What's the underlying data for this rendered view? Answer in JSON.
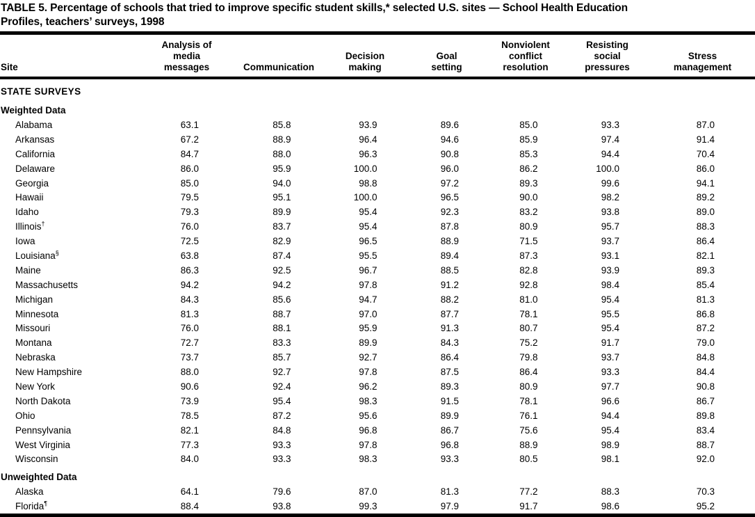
{
  "title": {
    "line1": "TABLE 5. Percentage of schools that tried to improve specific student skills,* selected U.S. sites — School Health Education",
    "line2": "Profiles, teachers’ surveys, 1998"
  },
  "table": {
    "header": {
      "site": "Site",
      "cols": [
        "Analysis of media messages",
        "Communication",
        "Decision making",
        "Goal setting",
        "Nonviolent conflict resolution",
        "Resisting social pressures",
        "Stress management"
      ]
    },
    "rows": [
      {
        "type": "section",
        "label": "STATE SURVEYS"
      },
      {
        "type": "subsection",
        "label": "Weighted Data"
      },
      {
        "type": "data",
        "site": "Alabama",
        "sup": "",
        "values": [
          "63.1",
          "85.8",
          "93.9",
          "89.6",
          "85.0",
          "93.3",
          "87.0"
        ]
      },
      {
        "type": "data",
        "site": "Arkansas",
        "sup": "",
        "values": [
          "67.2",
          "88.9",
          "96.4",
          "94.6",
          "85.9",
          "97.4",
          "91.4"
        ]
      },
      {
        "type": "data",
        "site": "California",
        "sup": "",
        "values": [
          "84.7",
          "88.0",
          "96.3",
          "90.8",
          "85.3",
          "94.4",
          "70.4"
        ]
      },
      {
        "type": "data",
        "site": "Delaware",
        "sup": "",
        "values": [
          "86.0",
          "95.9",
          "100.0",
          "96.0",
          "86.2",
          "100.0",
          "86.0"
        ]
      },
      {
        "type": "data",
        "site": "Georgia",
        "sup": "",
        "values": [
          "85.0",
          "94.0",
          "98.8",
          "97.2",
          "89.3",
          "99.6",
          "94.1"
        ]
      },
      {
        "type": "data",
        "site": "Hawaii",
        "sup": "",
        "values": [
          "79.5",
          "95.1",
          "100.0",
          "96.5",
          "90.0",
          "98.2",
          "89.2"
        ]
      },
      {
        "type": "data",
        "site": "Idaho",
        "sup": "",
        "values": [
          "79.3",
          "89.9",
          "95.4",
          "92.3",
          "83.2",
          "93.8",
          "89.0"
        ]
      },
      {
        "type": "data",
        "site": "Illinois",
        "sup": "†",
        "values": [
          "76.0",
          "83.7",
          "95.4",
          "87.8",
          "80.9",
          "95.7",
          "88.3"
        ]
      },
      {
        "type": "data",
        "site": "Iowa",
        "sup": "",
        "values": [
          "72.5",
          "82.9",
          "96.5",
          "88.9",
          "71.5",
          "93.7",
          "86.4"
        ]
      },
      {
        "type": "data",
        "site": "Louisiana",
        "sup": "§",
        "values": [
          "63.8",
          "87.4",
          "95.5",
          "89.4",
          "87.3",
          "93.1",
          "82.1"
        ]
      },
      {
        "type": "data",
        "site": "Maine",
        "sup": "",
        "values": [
          "86.3",
          "92.5",
          "96.7",
          "88.5",
          "82.8",
          "93.9",
          "89.3"
        ]
      },
      {
        "type": "data",
        "site": "Massachusetts",
        "sup": "",
        "values": [
          "94.2",
          "94.2",
          "97.8",
          "91.2",
          "92.8",
          "98.4",
          "85.4"
        ]
      },
      {
        "type": "data",
        "site": "Michigan",
        "sup": "",
        "values": [
          "84.3",
          "85.6",
          "94.7",
          "88.2",
          "81.0",
          "95.4",
          "81.3"
        ]
      },
      {
        "type": "data",
        "site": "Minnesota",
        "sup": "",
        "values": [
          "81.3",
          "88.7",
          "97.0",
          "87.7",
          "78.1",
          "95.5",
          "86.8"
        ]
      },
      {
        "type": "data",
        "site": "Missouri",
        "sup": "",
        "values": [
          "76.0",
          "88.1",
          "95.9",
          "91.3",
          "80.7",
          "95.4",
          "87.2"
        ]
      },
      {
        "type": "data",
        "site": "Montana",
        "sup": "",
        "values": [
          "72.7",
          "83.3",
          "89.9",
          "84.3",
          "75.2",
          "91.7",
          "79.0"
        ]
      },
      {
        "type": "data",
        "site": "Nebraska",
        "sup": "",
        "values": [
          "73.7",
          "85.7",
          "92.7",
          "86.4",
          "79.8",
          "93.7",
          "84.8"
        ]
      },
      {
        "type": "data",
        "site": "New Hampshire",
        "sup": "",
        "values": [
          "88.0",
          "92.7",
          "97.8",
          "87.5",
          "86.4",
          "93.3",
          "84.4"
        ]
      },
      {
        "type": "data",
        "site": "New York",
        "sup": "",
        "values": [
          "90.6",
          "92.4",
          "96.2",
          "89.3",
          "80.9",
          "97.7",
          "90.8"
        ]
      },
      {
        "type": "data",
        "site": "North Dakota",
        "sup": "",
        "values": [
          "73.9",
          "95.4",
          "98.3",
          "91.5",
          "78.1",
          "96.6",
          "86.7"
        ]
      },
      {
        "type": "data",
        "site": "Ohio",
        "sup": "",
        "values": [
          "78.5",
          "87.2",
          "95.6",
          "89.9",
          "76.1",
          "94.4",
          "89.8"
        ]
      },
      {
        "type": "data",
        "site": "Pennsylvania",
        "sup": "",
        "values": [
          "82.1",
          "84.8",
          "96.8",
          "86.7",
          "75.6",
          "95.4",
          "83.4"
        ]
      },
      {
        "type": "data",
        "site": "West Virginia",
        "sup": "",
        "values": [
          "77.3",
          "93.3",
          "97.8",
          "96.8",
          "88.9",
          "98.9",
          "88.7"
        ]
      },
      {
        "type": "data",
        "site": "Wisconsin",
        "sup": "",
        "values": [
          "84.0",
          "93.3",
          "98.3",
          "93.3",
          "80.5",
          "98.1",
          "92.0"
        ]
      },
      {
        "type": "subsection",
        "label": "Unweighted Data"
      },
      {
        "type": "data",
        "site": "Alaska",
        "sup": "",
        "values": [
          "64.1",
          "79.6",
          "87.0",
          "81.3",
          "77.2",
          "88.3",
          "70.3"
        ]
      },
      {
        "type": "data",
        "site": "Florida",
        "sup": "¶",
        "values": [
          "88.4",
          "93.8",
          "99.3",
          "97.9",
          "91.7",
          "98.6",
          "95.2"
        ]
      }
    ]
  }
}
